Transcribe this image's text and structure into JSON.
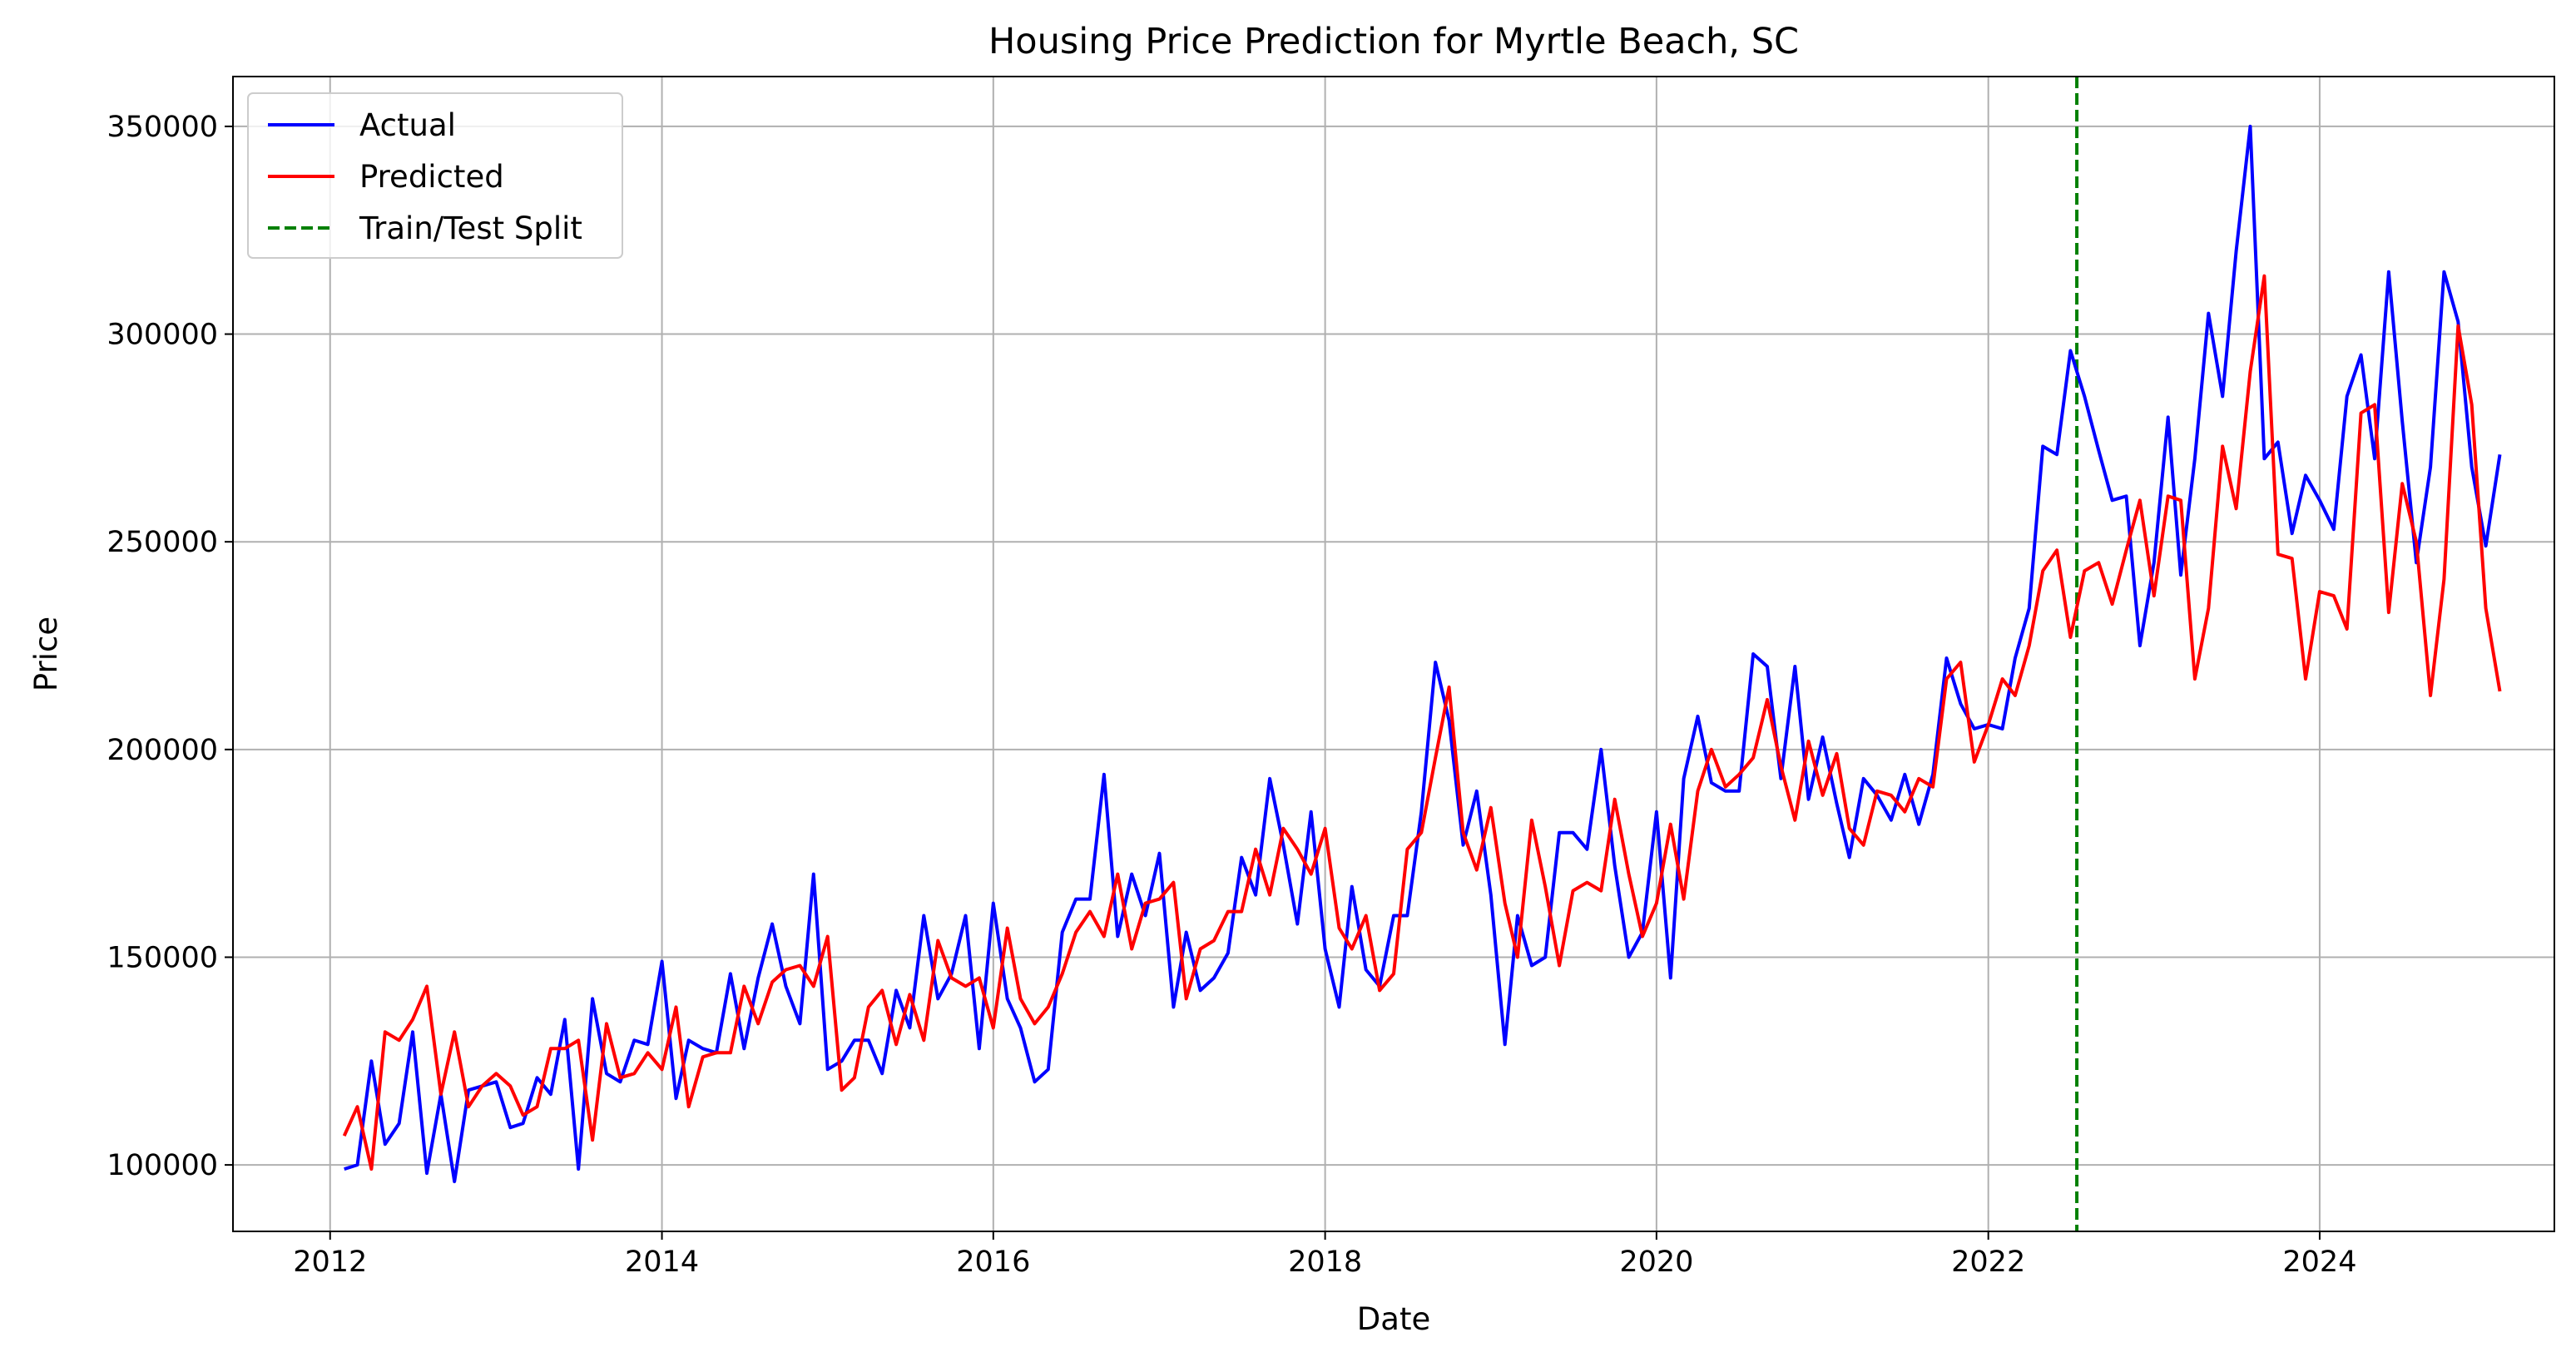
{
  "chart_data": {
    "type": "line",
    "title": "Housing Price Prediction for Myrtle Beach, SC",
    "xlabel": "Date",
    "ylabel": "Price",
    "xlim": [
      "2011-06-01",
      "2025-06-01"
    ],
    "ylim": [
      84000,
      362000
    ],
    "x_ticks": [
      "2012",
      "2014",
      "2016",
      "2018",
      "2020",
      "2022",
      "2024"
    ],
    "y_ticks": [
      "100000",
      "150000",
      "200000",
      "250000",
      "300000",
      "350000"
    ],
    "grid": true,
    "legend_position": "top-left",
    "x": [
      "2012-02",
      "2012-03",
      "2012-04",
      "2012-05",
      "2012-06",
      "2012-07",
      "2012-08",
      "2012-09",
      "2012-10",
      "2012-11",
      "2012-12",
      "2013-01",
      "2013-02",
      "2013-03",
      "2013-04",
      "2013-05",
      "2013-06",
      "2013-07",
      "2013-08",
      "2013-09",
      "2013-10",
      "2013-11",
      "2013-12",
      "2014-01",
      "2014-02",
      "2014-03",
      "2014-04",
      "2014-05",
      "2014-06",
      "2014-07",
      "2014-08",
      "2014-09",
      "2014-10",
      "2014-11",
      "2014-12",
      "2015-01",
      "2015-02",
      "2015-03",
      "2015-04",
      "2015-05",
      "2015-06",
      "2015-07",
      "2015-08",
      "2015-09",
      "2015-10",
      "2015-11",
      "2015-12",
      "2016-01",
      "2016-02",
      "2016-03",
      "2016-04",
      "2016-05",
      "2016-06",
      "2016-07",
      "2016-08",
      "2016-09",
      "2016-10",
      "2016-11",
      "2016-12",
      "2017-01",
      "2017-02",
      "2017-03",
      "2017-04",
      "2017-05",
      "2017-06",
      "2017-07",
      "2017-08",
      "2017-09",
      "2017-10",
      "2017-11",
      "2017-12",
      "2018-01",
      "2018-02",
      "2018-03",
      "2018-04",
      "2018-05",
      "2018-06",
      "2018-07",
      "2018-08",
      "2018-09",
      "2018-10",
      "2018-11",
      "2018-12",
      "2019-01",
      "2019-02",
      "2019-03",
      "2019-04",
      "2019-05",
      "2019-06",
      "2019-07",
      "2019-08",
      "2019-09",
      "2019-10",
      "2019-11",
      "2019-12",
      "2020-01",
      "2020-02",
      "2020-03",
      "2020-04",
      "2020-05",
      "2020-06",
      "2020-07",
      "2020-08",
      "2020-09",
      "2020-10",
      "2020-11",
      "2020-12",
      "2021-01",
      "2021-02",
      "2021-03",
      "2021-04",
      "2021-05",
      "2021-06",
      "2021-07",
      "2021-08",
      "2021-09",
      "2021-10",
      "2021-11",
      "2021-12",
      "2022-01",
      "2022-02",
      "2022-03",
      "2022-04",
      "2022-05",
      "2022-06",
      "2022-07",
      "2022-08",
      "2022-09",
      "2022-10",
      "2022-11",
      "2022-12",
      "2023-01",
      "2023-02",
      "2023-03",
      "2023-04",
      "2023-05",
      "2023-06",
      "2023-07",
      "2023-08",
      "2023-09",
      "2023-10",
      "2023-11",
      "2023-12",
      "2024-01",
      "2024-02",
      "2024-03",
      "2024-04",
      "2024-05",
      "2024-06",
      "2024-07",
      "2024-08",
      "2024-09",
      "2024-10",
      "2024-11",
      "2024-12",
      "2025-01",
      "2025-02"
    ],
    "series": [
      {
        "name": "Actual",
        "color": "#0000ff",
        "style": "solid",
        "values": [
          99000,
          100000,
          125000,
          105000,
          110000,
          132000,
          98000,
          117000,
          96000,
          118000,
          119000,
          120000,
          109000,
          110000,
          121000,
          117000,
          135000,
          99000,
          140000,
          122000,
          120000,
          130000,
          129000,
          149000,
          116000,
          130000,
          128000,
          127000,
          146000,
          128000,
          145000,
          158000,
          143000,
          134000,
          170000,
          123000,
          125000,
          130000,
          130000,
          122000,
          142000,
          133000,
          160000,
          140000,
          146000,
          160000,
          128000,
          163000,
          140000,
          133000,
          120000,
          123000,
          156000,
          164000,
          164000,
          194000,
          155000,
          170000,
          160000,
          175000,
          138000,
          156000,
          142000,
          145000,
          151000,
          174000,
          165000,
          193000,
          177000,
          158000,
          185000,
          152000,
          138000,
          167000,
          147000,
          143000,
          160000,
          160000,
          185000,
          221000,
          207000,
          177000,
          190000,
          165000,
          129000,
          160000,
          148000,
          150000,
          180000,
          180000,
          176000,
          200000,
          172000,
          150000,
          156000,
          185000,
          145000,
          193000,
          208000,
          192000,
          190000,
          190000,
          223000,
          220000,
          193000,
          220000,
          188000,
          203000,
          187000,
          174000,
          193000,
          189000,
          183000,
          194000,
          182000,
          194000,
          222000,
          211000,
          205000,
          206000,
          205000,
          222000,
          234000,
          273000,
          271000,
          296000,
          285000,
          272000,
          260000,
          261000,
          225000,
          245000,
          280000,
          242000,
          270000,
          305000,
          285000,
          320000,
          350000,
          270000,
          274000,
          252000,
          266000,
          260000,
          253000,
          285000,
          295000,
          270000,
          315000,
          279000,
          245000,
          268000,
          315000,
          303000,
          268000,
          249000,
          271000
        ]
      },
      {
        "name": "Predicted",
        "color": "#ff0000",
        "style": "solid",
        "values": [
          107000,
          114000,
          99000,
          132000,
          130000,
          135000,
          143000,
          117000,
          132000,
          114000,
          119000,
          122000,
          119000,
          112000,
          114000,
          128000,
          128000,
          130000,
          106000,
          134000,
          121000,
          122000,
          127000,
          123000,
          138000,
          114000,
          126000,
          127000,
          127000,
          143000,
          134000,
          144000,
          147000,
          148000,
          143000,
          155000,
          118000,
          121000,
          138000,
          142000,
          129000,
          141000,
          130000,
          154000,
          145000,
          143000,
          145000,
          133000,
          157000,
          140000,
          134000,
          138000,
          146000,
          156000,
          161000,
          155000,
          170000,
          152000,
          163000,
          164000,
          168000,
          140000,
          152000,
          154000,
          161000,
          161000,
          176000,
          165000,
          181000,
          176000,
          170000,
          181000,
          157000,
          152000,
          160000,
          142000,
          146000,
          176000,
          180000,
          198000,
          215000,
          180000,
          171000,
          186000,
          163000,
          150000,
          183000,
          167000,
          148000,
          166000,
          168000,
          166000,
          188000,
          170000,
          155000,
          163000,
          182000,
          164000,
          190000,
          200000,
          191000,
          194000,
          198000,
          212000,
          196000,
          183000,
          202000,
          189000,
          199000,
          181000,
          177000,
          190000,
          189000,
          185000,
          193000,
          191000,
          217000,
          221000,
          197000,
          206000,
          217000,
          213000,
          225000,
          243000,
          248000,
          227000,
          243000,
          245000,
          235000,
          248000,
          260000,
          237000,
          261000,
          260000,
          217000,
          234000,
          273000,
          258000,
          291000,
          314000,
          247000,
          246000,
          217000,
          238000,
          237000,
          229000,
          281000,
          283000,
          233000,
          264000,
          250000,
          213000,
          241000,
          302000,
          283000,
          234000,
          214000
        ]
      }
    ],
    "train_test_split": {
      "name": "Train/Test Split",
      "x": "2022-07-15",
      "color": "#008000",
      "style": "dashed"
    }
  }
}
